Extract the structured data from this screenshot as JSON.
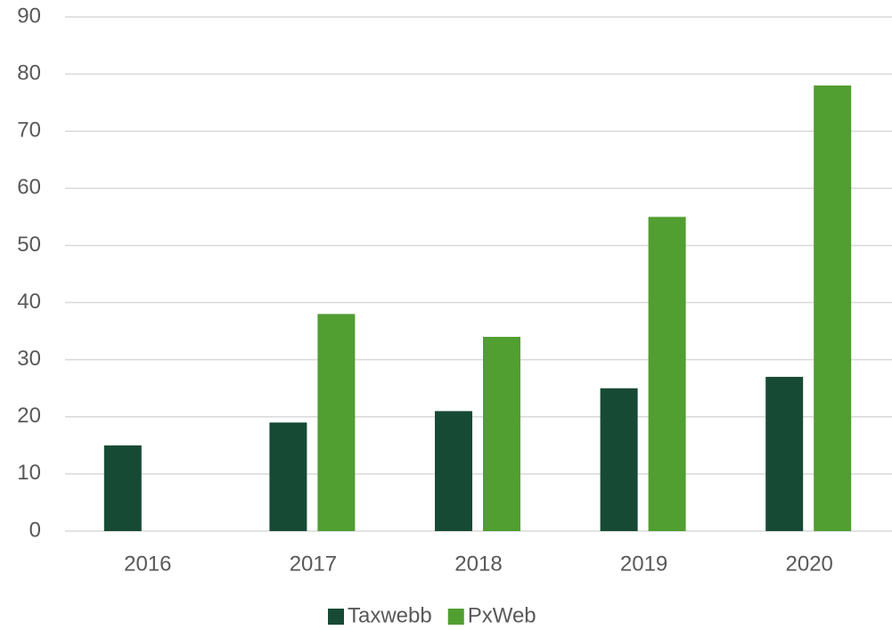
{
  "chart_data": {
    "type": "bar",
    "categories": [
      "2016",
      "2017",
      "2018",
      "2019",
      "2020"
    ],
    "series": [
      {
        "name": "Taxwebb",
        "color": "#174a35",
        "values": [
          15,
          19,
          21,
          25,
          27
        ]
      },
      {
        "name": "PxWeb",
        "color": "#519e31",
        "values": [
          null,
          38,
          34,
          55,
          78
        ]
      }
    ],
    "ylim": [
      0,
      90
    ],
    "yticks": [
      0,
      10,
      20,
      30,
      40,
      50,
      60,
      70,
      80,
      90
    ],
    "grid": true,
    "legend": "bottom"
  }
}
